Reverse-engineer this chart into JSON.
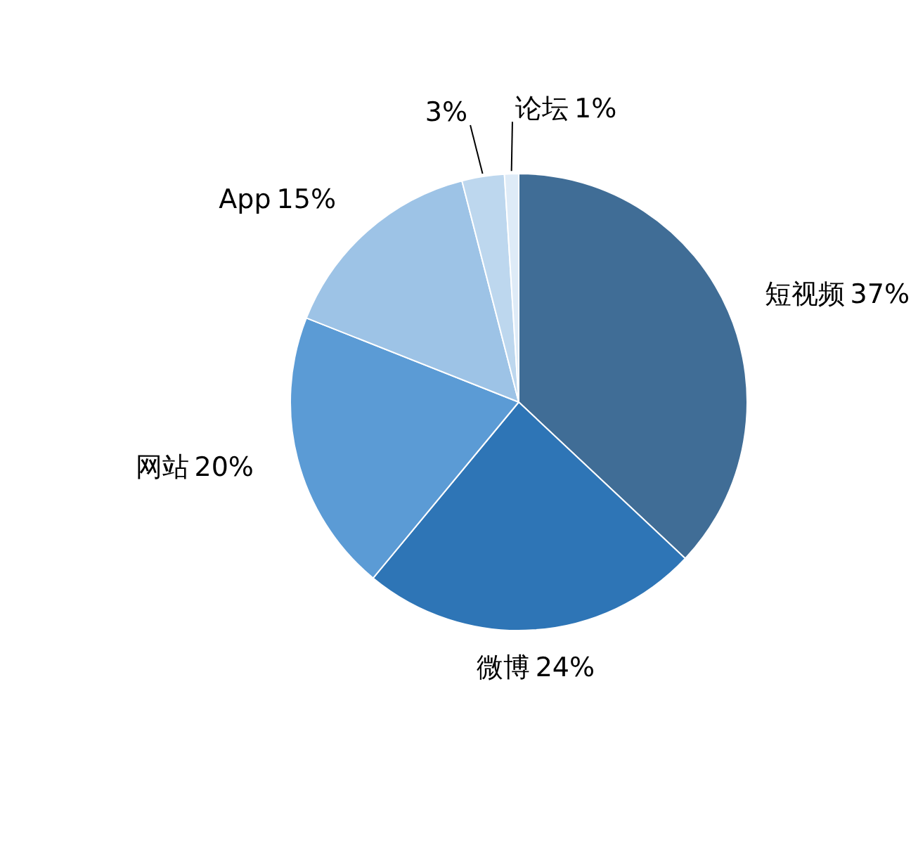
{
  "chart_data": {
    "type": "pie",
    "categories": [
      "短视频",
      "微博",
      "网站",
      "App",
      null,
      "论坛"
    ],
    "values": [
      37,
      24,
      20,
      15,
      3,
      1
    ],
    "colors": [
      "#406d96",
      "#2e75b6",
      "#5b9bd5",
      "#9dc3e6",
      "#bdd7ee",
      "#deebf7"
    ],
    "value_labels": [
      "37%",
      "24%",
      "20%",
      "15%",
      "3%",
      "1%"
    ],
    "legend": false
  }
}
